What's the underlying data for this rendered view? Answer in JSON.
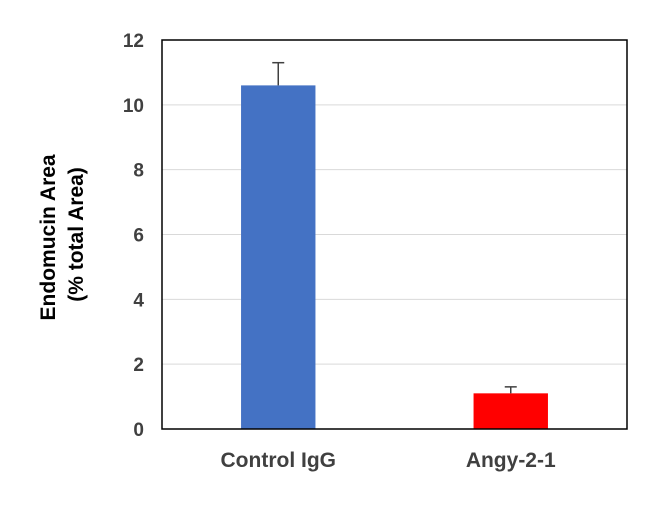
{
  "chart_data": {
    "type": "bar",
    "categories": [
      "Control IgG",
      "Angy-2-1"
    ],
    "values": [
      10.6,
      1.1
    ],
    "error_upper": [
      0.7,
      0.2
    ],
    "bar_colors": [
      "#4472C4",
      "#FF0000"
    ],
    "yticks": [
      "0",
      "2",
      "4",
      "6",
      "8",
      "10",
      "12"
    ],
    "ylim": [
      0,
      12
    ],
    "ylabel_line1": "Endomucin Area",
    "ylabel_line2": "(% total Area)",
    "xlabel": "",
    "title": "",
    "grid": true,
    "legend": "none"
  }
}
